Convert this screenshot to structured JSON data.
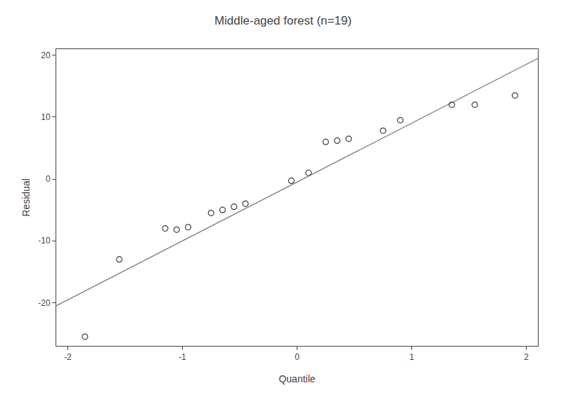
{
  "chart_data": {
    "type": "scatter",
    "title": "Middle-aged forest (n=19)",
    "xlabel": "Quantile",
    "ylabel": "Residual",
    "xlim": [
      -2.1,
      2.1
    ],
    "ylim": [
      -27,
      21
    ],
    "xticks": [
      -2,
      -1,
      0,
      1,
      2
    ],
    "yticks": [
      -20,
      -10,
      0,
      10,
      20
    ],
    "grid": false,
    "series": [
      {
        "type": "scatter",
        "marker": "open_circle",
        "color": "#404040",
        "x": [
          -1.85,
          -1.55,
          -1.15,
          -1.05,
          -0.95,
          -0.75,
          -0.65,
          -0.55,
          -0.45,
          -0.05,
          0.1,
          0.25,
          0.35,
          0.45,
          0.75,
          0.9,
          1.35,
          1.55,
          1.9
        ],
        "values": [
          -25.5,
          -13.0,
          -8.0,
          -8.2,
          -7.8,
          -5.5,
          -5.0,
          -4.5,
          -4.0,
          -0.3,
          1.0,
          6.0,
          6.2,
          6.5,
          7.8,
          9.5,
          12.0,
          12.0,
          13.5
        ]
      },
      {
        "type": "line",
        "line_style": "solid",
        "color": "#888888",
        "x": [
          -2.1,
          2.1
        ],
        "values": [
          -20.5,
          19.5
        ]
      }
    ]
  }
}
